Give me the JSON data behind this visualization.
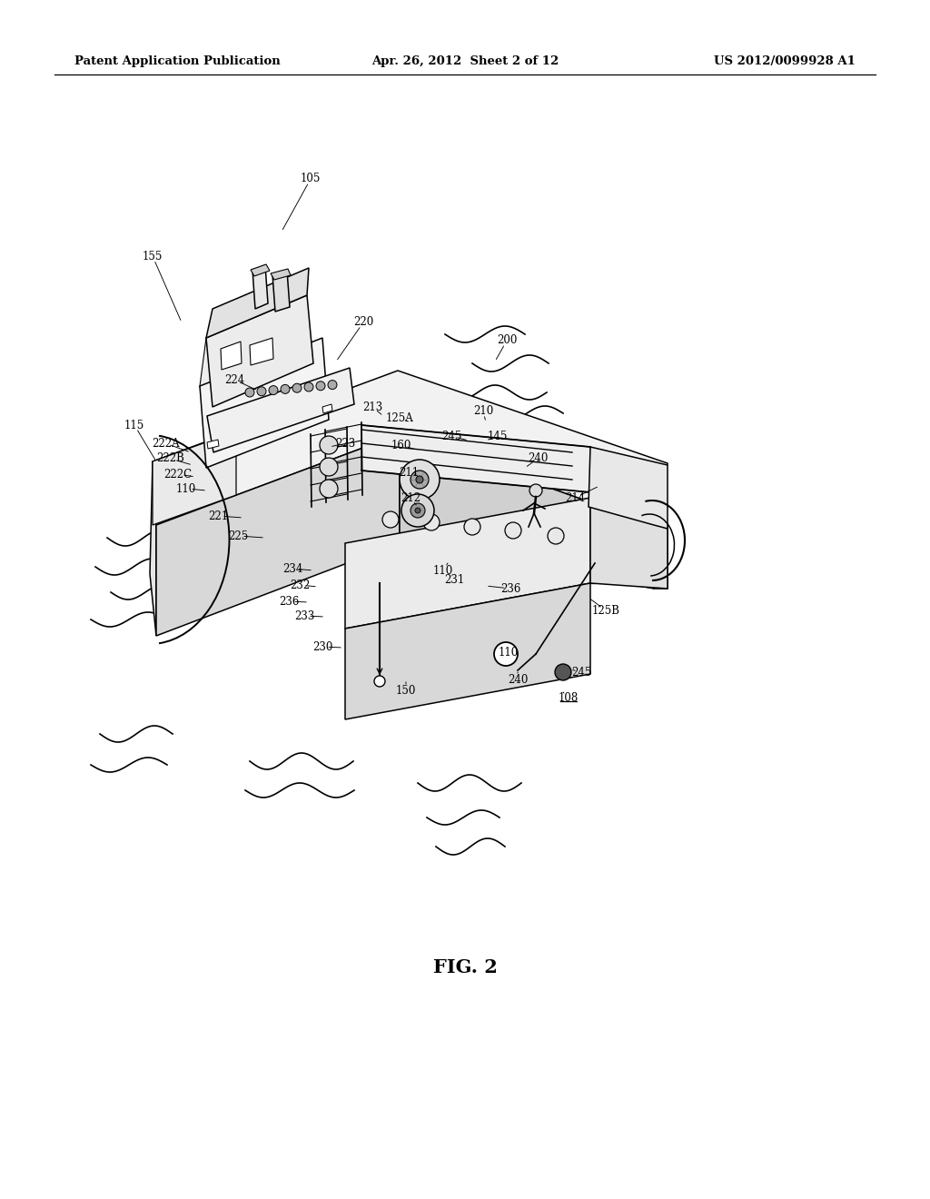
{
  "bg_color": "#ffffff",
  "header_left": "Patent Application Publication",
  "header_center": "Apr. 26, 2012  Sheet 2 of 12",
  "header_right": "US 2012/0099928 A1",
  "fig_caption": "FIG. 2",
  "lw": 1.1
}
